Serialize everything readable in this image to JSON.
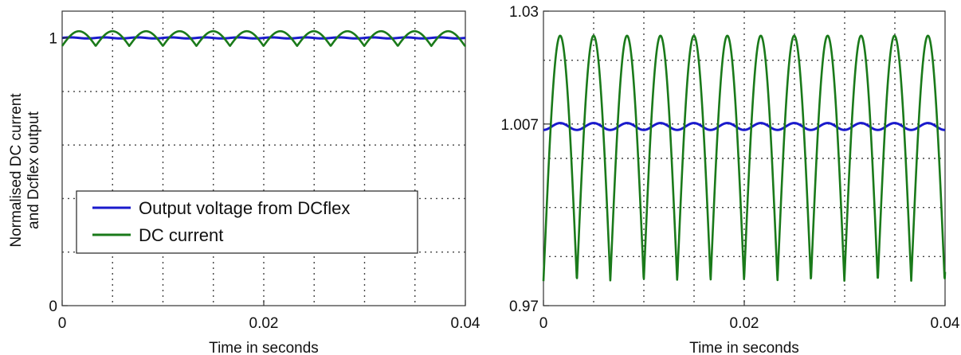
{
  "chart_data": [
    {
      "type": "line",
      "xlabel": "Time in seconds",
      "ylabel": [
        "Normalised DC current",
        "and Dcflex output"
      ],
      "xlim": [
        0,
        0.04
      ],
      "ylim": [
        0,
        1.1
      ],
      "xticks": [
        0,
        0.02,
        0.04
      ],
      "xtick_labels": [
        "0",
        "0.02",
        "0.04"
      ],
      "yticks": [
        0,
        1
      ],
      "ytick_labels": [
        "0",
        "1"
      ],
      "x_grid": [
        0,
        0.005,
        0.01,
        0.015,
        0.02,
        0.025,
        0.03,
        0.035,
        0.04
      ],
      "y_grid": [
        0.2,
        0.4,
        0.6,
        0.8,
        1
      ],
      "grid": true,
      "legend_position": "lower-left",
      "series": [
        {
          "name": "Output voltage from DCflex",
          "color": "#1a1acc",
          "shape": "flat",
          "mean": 1.0,
          "amplitude": 0.002,
          "period": 0.00333
        },
        {
          "name": "DC current",
          "color": "#1a7a1a",
          "shape": "rectified-sine",
          "min": 0.97,
          "max": 1.025,
          "period": 0.00333
        }
      ]
    },
    {
      "type": "line",
      "xlabel": "Time in seconds",
      "xlim": [
        0,
        0.04
      ],
      "ylim": [
        0.97,
        1.03
      ],
      "xticks": [
        0,
        0.02,
        0.04
      ],
      "xtick_labels": [
        "0",
        "0.02",
        "0.04"
      ],
      "yticks": [
        0.97,
        1.007,
        1.03
      ],
      "ytick_labels": [
        "0.97",
        "1.007",
        "1.03"
      ],
      "x_grid": [
        0,
        0.005,
        0.01,
        0.015,
        0.02,
        0.025,
        0.03,
        0.035,
        0.04
      ],
      "y_grid": [
        0.98,
        0.99,
        1.0,
        1.007,
        1.02
      ],
      "grid": true,
      "series": [
        {
          "name": "Output voltage from DCflex",
          "color": "#1a1acc",
          "shape": "ripple",
          "mean": 1.0065,
          "amplitude": 0.0007,
          "period": 0.00333
        },
        {
          "name": "DC current",
          "color": "#1a7a1a",
          "shape": "rectified-sine",
          "min": 0.975,
          "max": 1.025,
          "period": 0.00333
        }
      ]
    }
  ]
}
